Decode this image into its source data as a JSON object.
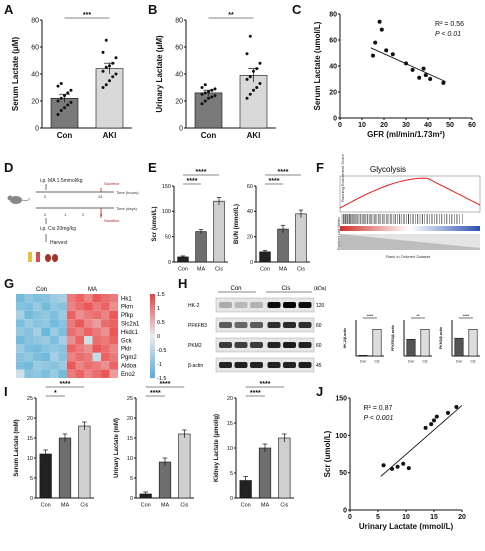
{
  "panel_labels": {
    "A": "A",
    "B": "B",
    "C": "C",
    "D": "D",
    "E": "E",
    "F": "F",
    "G": "G",
    "H": "H",
    "I": "I",
    "J": "J"
  },
  "chart_data": [
    {
      "id": "A",
      "type": "bar",
      "categories": [
        "Con",
        "AKI"
      ],
      "values": [
        22,
        44
      ],
      "errors": [
        3,
        4
      ],
      "bar_colors": [
        "#7a7a7a",
        "#d9d9d9"
      ],
      "points": [
        [
          10,
          13,
          15,
          17,
          19,
          20,
          22,
          24,
          26,
          28,
          31,
          33
        ],
        [
          30,
          32,
          35,
          38,
          40,
          42,
          45,
          46,
          48,
          52,
          56,
          65
        ]
      ],
      "ylabel": "Serum Lactate (μM)",
      "ylim": [
        0,
        80
      ],
      "yticks": [
        0,
        20,
        40,
        60,
        80
      ],
      "significance": "***"
    },
    {
      "id": "B",
      "type": "bar",
      "categories": [
        "Con",
        "AKI"
      ],
      "values": [
        26,
        39
      ],
      "errors": [
        2,
        5
      ],
      "bar_colors": [
        "#7a7a7a",
        "#d9d9d9"
      ],
      "points": [
        [
          18,
          20,
          22,
          23,
          24,
          25,
          26,
          27,
          28,
          29,
          30,
          32
        ],
        [
          22,
          25,
          28,
          30,
          33,
          36,
          38,
          42,
          44,
          48,
          55,
          68
        ]
      ],
      "ylabel": "Urinary Lactate (μM)",
      "ylim": [
        0,
        80
      ],
      "yticks": [
        0,
        20,
        40,
        60,
        80
      ],
      "significance": "**"
    },
    {
      "id": "C",
      "type": "scatter",
      "x": [
        15,
        16,
        18,
        19,
        21,
        24,
        30,
        33,
        36,
        38,
        39,
        41,
        47
      ],
      "y": [
        48,
        58,
        74,
        68,
        52,
        49,
        42,
        37,
        31,
        38,
        33,
        30,
        27
      ],
      "fit": [
        [
          14,
          54
        ],
        [
          48,
          28
        ]
      ],
      "xlabel": "GFR (ml/min/1.73m²)",
      "ylabel": "Serum Lactate (umol/L)",
      "xlim": [
        0,
        60
      ],
      "ylim": [
        0,
        80
      ],
      "xticks": [
        0,
        10,
        20,
        30,
        40,
        50,
        60
      ],
      "yticks": [
        0,
        20,
        40,
        60,
        80
      ],
      "annotations": [
        "R² = 0.56",
        "P < 0.01"
      ]
    },
    {
      "id": "E1",
      "type": "bar",
      "categories": [
        "Con",
        "MA",
        "Cis"
      ],
      "values": [
        10,
        60,
        120
      ],
      "errors": [
        2,
        4,
        7
      ],
      "bar_colors": [
        "#222222",
        "#6e6e6e",
        "#cfcfcf"
      ],
      "ylabel": "Scr (umol/L)",
      "ylim": [
        0,
        150
      ],
      "yticks": [
        0,
        50,
        100,
        150
      ],
      "significance": [
        "****",
        "****"
      ]
    },
    {
      "id": "E2",
      "type": "bar",
      "categories": [
        "Con",
        "MA",
        "Cis"
      ],
      "values": [
        8,
        26,
        38
      ],
      "errors": [
        1,
        3,
        3
      ],
      "bar_colors": [
        "#222222",
        "#6e6e6e",
        "#cfcfcf"
      ],
      "ylabel": "BUN (mmol/L)",
      "ylim": [
        0,
        60
      ],
      "yticks": [
        0,
        20,
        40,
        60
      ],
      "significance": [
        "****",
        "****"
      ]
    },
    {
      "id": "H2",
      "type": "bar",
      "categories": [
        "Con",
        "Cis"
      ],
      "values": [
        0.1,
        4.2
      ],
      "bar_colors": [
        "#555555",
        "#dddddd"
      ],
      "ylabel": "HK-2/β-actin",
      "significance": "****"
    },
    {
      "id": "H3",
      "type": "bar",
      "categories": [
        "Con",
        "Cis"
      ],
      "values": [
        1.0,
        1.6
      ],
      "bar_colors": [
        "#555555",
        "#dddddd"
      ],
      "ylabel": "PFKFB3/β-actin",
      "significance": "**"
    },
    {
      "id": "H4",
      "type": "bar",
      "categories": [
        "Con",
        "Cis"
      ],
      "values": [
        1.0,
        1.5
      ],
      "bar_colors": [
        "#555555",
        "#dddddd"
      ],
      "ylabel": "PKM2/β-actin",
      "significance": "****"
    },
    {
      "id": "I1",
      "type": "bar",
      "categories": [
        "Con",
        "MA",
        "Cis"
      ],
      "values": [
        11,
        15,
        18
      ],
      "errors": [
        1,
        1,
        1
      ],
      "bar_colors": [
        "#222222",
        "#6e6e6e",
        "#cfcfcf"
      ],
      "ylabel": "Serum Lactate (mM)",
      "ylim": [
        0,
        25
      ],
      "yticks": [
        0,
        5,
        10,
        15,
        20,
        25
      ],
      "significance": [
        "*",
        "****"
      ]
    },
    {
      "id": "I2",
      "type": "bar",
      "categories": [
        "Con",
        "MA",
        "Cis"
      ],
      "values": [
        1,
        9,
        16
      ],
      "errors": [
        0.5,
        1,
        1
      ],
      "bar_colors": [
        "#222222",
        "#6e6e6e",
        "#cfcfcf"
      ],
      "ylabel": "Urinary Lactate (mM)",
      "ylim": [
        0,
        25
      ],
      "yticks": [
        0,
        5,
        10,
        15,
        20,
        25
      ],
      "significance": [
        "****",
        "****"
      ]
    },
    {
      "id": "I3",
      "type": "bar",
      "categories": [
        "Con",
        "MA",
        "Cis"
      ],
      "values": [
        3.5,
        10,
        12
      ],
      "errors": [
        0.8,
        0.8,
        0.8
      ],
      "bar_colors": [
        "#222222",
        "#6e6e6e",
        "#cfcfcf"
      ],
      "ylabel": "Kidney Lactate (μmol/g)",
      "ylim": [
        0,
        20
      ],
      "yticks": [
        0,
        5,
        10,
        15,
        20
      ],
      "significance": [
        "****",
        "****"
      ]
    },
    {
      "id": "J",
      "type": "scatter",
      "x": [
        6,
        7.5,
        8.5,
        9.5,
        10.5,
        13.5,
        14.5,
        15,
        15.5,
        17.5,
        19
      ],
      "y": [
        60,
        55,
        58,
        62,
        56,
        110,
        115,
        120,
        125,
        130,
        138
      ],
      "fit": [
        [
          5.5,
          45
        ],
        [
          20,
          140
        ]
      ],
      "xlabel": "Urinary Lactate (mmol/L)",
      "ylabel": "Scr (umol/L)",
      "xlim": [
        0,
        20
      ],
      "ylim": [
        0,
        150
      ],
      "xticks": [
        0,
        5,
        10,
        15,
        20
      ],
      "yticks": [
        0,
        50,
        100,
        150
      ],
      "annotations": [
        "R² = 0.87",
        "P < 0.001"
      ]
    }
  ],
  "schematic": {
    "top_line": "i.p. MA 1.5mmol/kg",
    "bottom_line": "i.p. Cis 20mg/kg",
    "sacrifice": "Sacrifice",
    "harvest": "Harvest",
    "time_hours": "Time (hours)",
    "time_days": "Time (days)",
    "ticks_top": [
      "0",
      "24"
    ],
    "ticks_bottom": [
      "0",
      "1",
      "2",
      "3"
    ]
  },
  "gsea": {
    "title": "Glycolysis",
    "ylabel_top": "Running Enrichment Score",
    "ylabel_bottom": "Ranked List Metric",
    "xlabel": "Rank in Ordered Dataset"
  },
  "heatmap": {
    "groups": [
      "Con",
      "MA"
    ],
    "genes": [
      "Hk1",
      "Pkm",
      "Pfkp",
      "Slc2a1",
      "Hkdc1",
      "Gck",
      "Pklr",
      "Pgm2",
      "Aldoa",
      "Eno2"
    ],
    "legend_ticks": [
      "1.5",
      "1",
      "0.5",
      "0",
      "-0.5",
      "-1",
      "-1.5"
    ],
    "values": [
      [
        -1.2,
        -0.9,
        -1.1,
        -1.0,
        -0.8,
        -0.7,
        1.0,
        1.2,
        0.9,
        1.3,
        1.1,
        1.0
      ],
      [
        -1.0,
        -1.1,
        -0.8,
        -1.2,
        -0.9,
        -1.0,
        0.9,
        1.1,
        1.3,
        1.0,
        1.2,
        0.8
      ],
      [
        -0.7,
        -1.2,
        -1.0,
        -0.9,
        -1.1,
        -0.8,
        1.2,
        0.8,
        1.0,
        1.1,
        0.9,
        1.3
      ],
      [
        -1.1,
        -0.8,
        -1.0,
        -0.9,
        -1.2,
        -1.0,
        1.0,
        1.3,
        0.9,
        0.7,
        1.1,
        1.2
      ],
      [
        -0.9,
        -1.0,
        -0.7,
        -1.3,
        -0.8,
        -1.1,
        1.1,
        0.9,
        1.2,
        1.0,
        0.8,
        1.3
      ],
      [
        -1.2,
        -1.0,
        -0.9,
        -0.8,
        -1.1,
        -0.7,
        0.8,
        1.2,
        -0.3,
        1.1,
        1.0,
        1.2
      ],
      [
        -0.8,
        -1.1,
        -1.2,
        -1.0,
        -0.9,
        -1.0,
        1.2,
        1.0,
        0.8,
        1.3,
        1.1,
        0.9
      ],
      [
        -1.0,
        -0.9,
        -1.1,
        -1.2,
        -0.7,
        -1.0,
        0.9,
        1.1,
        1.0,
        -0.4,
        1.2,
        1.0
      ],
      [
        -1.1,
        -1.2,
        -0.8,
        -0.9,
        -1.0,
        -0.8,
        1.3,
        0.9,
        1.1,
        1.0,
        0.8,
        1.2
      ],
      [
        -0.3,
        -1.0,
        -0.9,
        -1.1,
        -0.8,
        -1.2,
        1.0,
        1.2,
        0.9,
        1.1,
        1.3,
        0.7
      ]
    ]
  },
  "western": {
    "groups": [
      "Con",
      "Cis"
    ],
    "unit": "(kDa)",
    "bands": [
      {
        "name": "HK-2",
        "kda": "120"
      },
      {
        "name": "PFKFB3",
        "kda": "60"
      },
      {
        "name": "PKM2",
        "kda": "60"
      },
      {
        "name": "β-actin",
        "kda": "45"
      }
    ]
  }
}
